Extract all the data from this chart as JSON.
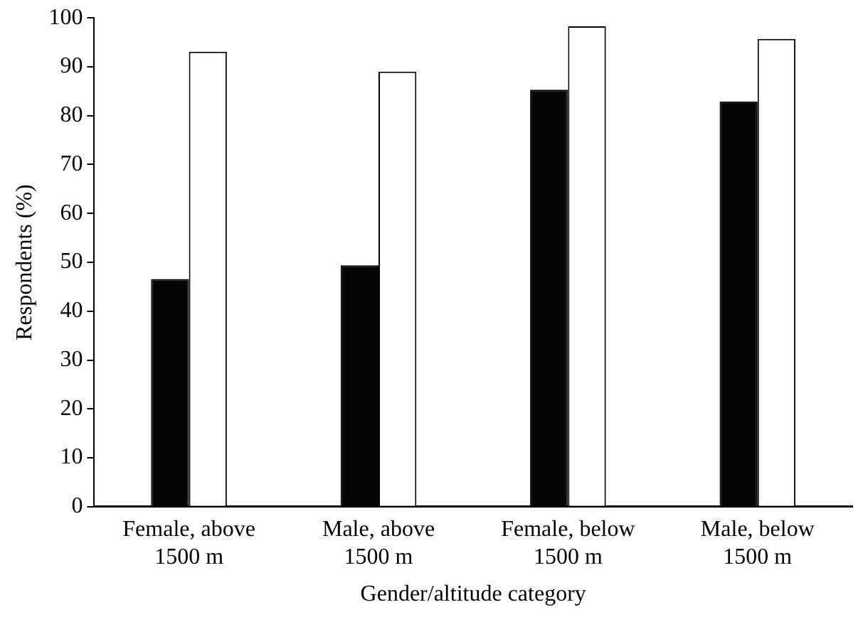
{
  "chart_data": {
    "type": "bar",
    "xlabel": "Gender/altitude category",
    "ylabel": "Respondents (%)",
    "categories": [
      "Female, above 1500 m",
      "Male, above 1500 m",
      "Female, below 1500 m",
      "Male, below 1500 m"
    ],
    "series": [
      {
        "color": "#050505",
        "values": [
          46.6,
          49.4,
          85.3,
          82.9
        ]
      },
      {
        "color": "#ffffff",
        "values": [
          93.1,
          89.0,
          98.3,
          95.7
        ]
      }
    ],
    "ylim": [
      0,
      100
    ],
    "yticks": [
      0,
      10,
      20,
      30,
      40,
      50,
      60,
      70,
      80,
      90,
      100
    ],
    "grid": false,
    "legend": false
  }
}
